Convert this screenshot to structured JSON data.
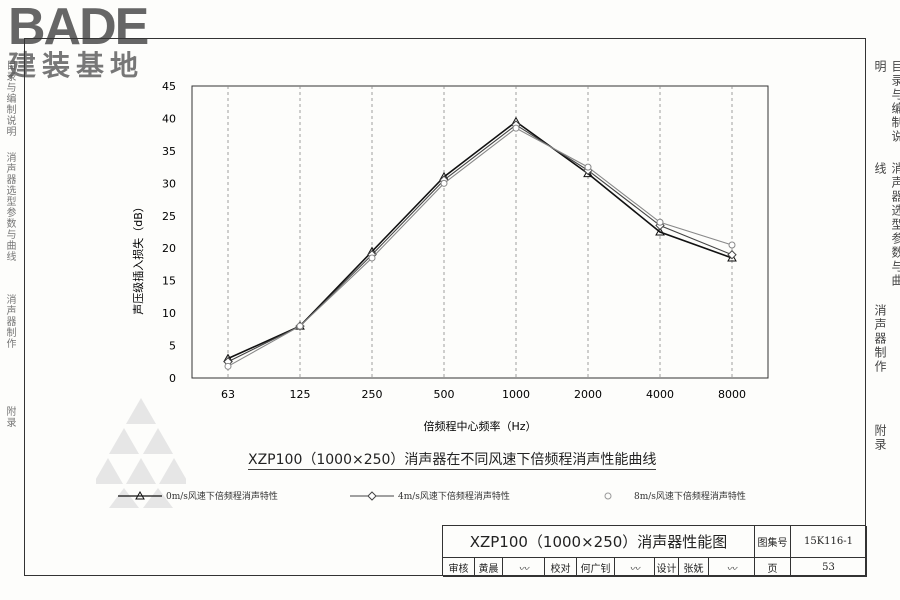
{
  "watermark": {
    "brand": "BADE",
    "sub": "建装基地"
  },
  "right_tabs": [
    "目录与编制说明",
    "消声器选型参数与曲线",
    "消声器制作",
    "附录"
  ],
  "left_tabs": [
    "目录与编制说明",
    "消声器选型参数与曲线",
    "消声器制作",
    "附录"
  ],
  "chart_data": {
    "type": "line",
    "title": "XZP100（1000×250）消声器在不同风速下倍频程消声性能曲线",
    "xlabel": "倍频程中心频率（Hz）",
    "ylabel": "声压级插入损失（dB）",
    "categories": [
      "63",
      "125",
      "250",
      "500",
      "1000",
      "2000",
      "4000",
      "8000"
    ],
    "ylim": [
      0,
      45
    ],
    "yticks": [
      0,
      5,
      10,
      15,
      20,
      25,
      30,
      35,
      40,
      45
    ],
    "grid": "vertical",
    "legend_position": "bottom",
    "series": [
      {
        "name": "0m/s风速下倍频程消声特性",
        "marker": "triangle",
        "color": "#111111",
        "values": [
          3.0,
          8.0,
          19.5,
          31.0,
          39.5,
          31.5,
          22.5,
          18.5
        ]
      },
      {
        "name": "4m/s风速下倍频程消声特性",
        "marker": "diamond",
        "color": "#444444",
        "values": [
          2.5,
          8.0,
          19.0,
          30.5,
          39.0,
          32.0,
          23.5,
          19.0
        ]
      },
      {
        "name": "8m/s风速下倍频程消声特性",
        "marker": "circle",
        "color": "#888888",
        "values": [
          1.8,
          8.0,
          18.5,
          30.0,
          38.5,
          32.5,
          24.0,
          20.5
        ]
      }
    ]
  },
  "title_block": {
    "title": "XZP100（1000×250）消声器性能图",
    "atlas_label": "图集号",
    "atlas_no": "15K116-1",
    "review_label": "审核",
    "reviewer": "黄晨",
    "check_label": "校对",
    "checker": "何广钊",
    "design_label": "设计",
    "designer": "张妩",
    "page_label": "页",
    "page_no": "53"
  }
}
